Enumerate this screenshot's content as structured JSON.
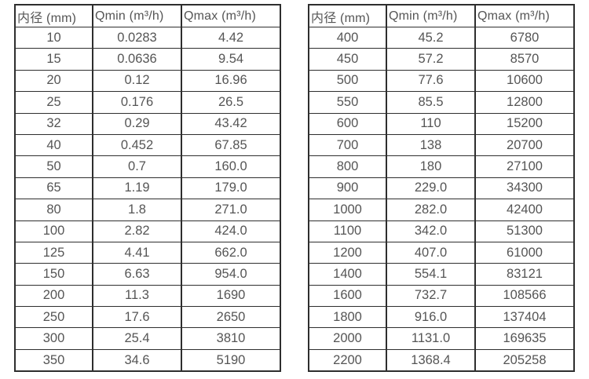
{
  "page": {
    "description": "Two side-by-side specification tables listing minimum and maximum flow rates by inner pipe diameter"
  },
  "colors": {
    "border": "#2e2e2e",
    "text": "#555555",
    "background": "#ffffff"
  },
  "tables": [
    {
      "name": "small-diameters",
      "headers": [
        "内径 (mm)",
        "Qmin (m³/h)",
        "Qmax (m³/h)"
      ],
      "rows": [
        [
          "10",
          "0.0283",
          "4.42"
        ],
        [
          "15",
          "0.0636",
          "9.54"
        ],
        [
          "20",
          "0.12",
          "16.96"
        ],
        [
          "25",
          "0.176",
          "26.5"
        ],
        [
          "32",
          "0.29",
          "43.42"
        ],
        [
          "40",
          "0.452",
          "67.85"
        ],
        [
          "50",
          "0.7",
          "160.0"
        ],
        [
          "65",
          "1.19",
          "179.0"
        ],
        [
          "80",
          "1.8",
          "271.0"
        ],
        [
          "100",
          "2.82",
          "424.0"
        ],
        [
          "125",
          "4.41",
          "662.0"
        ],
        [
          "150",
          "6.63",
          "954.0"
        ],
        [
          "200",
          "11.3",
          "1690"
        ],
        [
          "250",
          "17.6",
          "2650"
        ],
        [
          "300",
          "25.4",
          "3810"
        ],
        [
          "350",
          "34.6",
          "5190"
        ]
      ]
    },
    {
      "name": "large-diameters",
      "headers": [
        "内径 (mm)",
        "Qmin (m³/h)",
        "Qmax (m³/h)"
      ],
      "rows": [
        [
          "400",
          "45.2",
          "6780"
        ],
        [
          "450",
          "57.2",
          "8570"
        ],
        [
          "500",
          "77.6",
          "10600"
        ],
        [
          "550",
          "85.5",
          "12800"
        ],
        [
          "600",
          "110",
          "15200"
        ],
        [
          "700",
          "138",
          "20700"
        ],
        [
          "800",
          "180",
          "27100"
        ],
        [
          "900",
          "229.0",
          "34300"
        ],
        [
          "1000",
          "282.0",
          "42400"
        ],
        [
          "1100",
          "342.0",
          "51300"
        ],
        [
          "1200",
          "407.0",
          "61000"
        ],
        [
          "1400",
          "554.1",
          "83121"
        ],
        [
          "1600",
          "732.7",
          "108566"
        ],
        [
          "1800",
          "916.0",
          "137404"
        ],
        [
          "2000",
          "1131.0",
          "169635"
        ],
        [
          "2200",
          "1368.4",
          "205258"
        ]
      ]
    }
  ]
}
